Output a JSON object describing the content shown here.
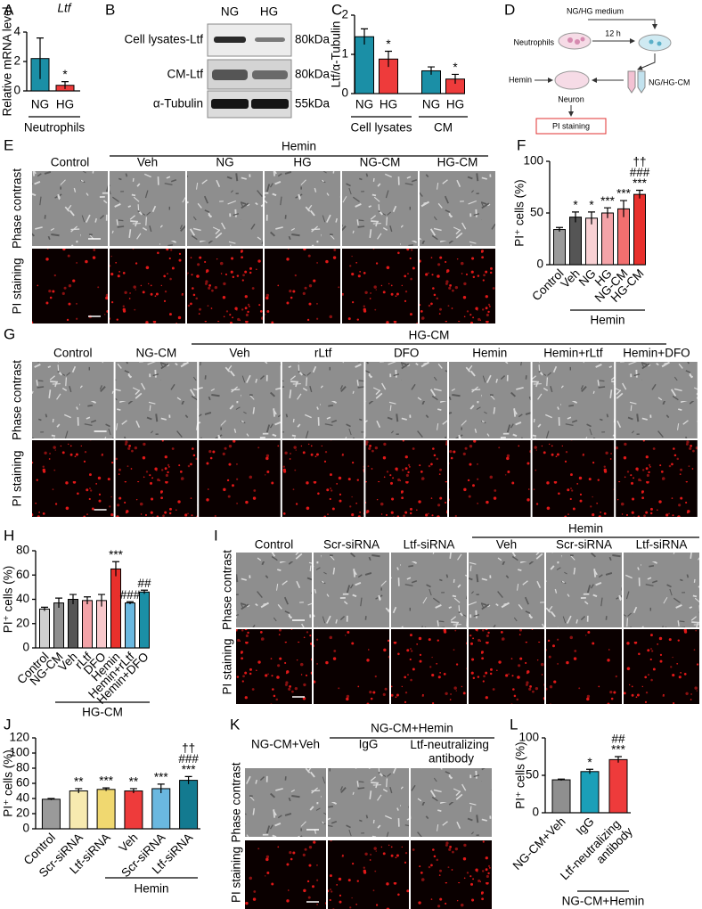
{
  "letters": [
    "A",
    "B",
    "C",
    "D",
    "E",
    "F",
    "G",
    "H",
    "I",
    "J",
    "K",
    "L"
  ],
  "blot": {
    "lanes": [
      "NG",
      "HG"
    ],
    "rows": [
      {
        "label": "Cell lysates-Ltf",
        "size": "80kDa"
      },
      {
        "label": "CM-Ltf",
        "size": "80kDa"
      },
      {
        "label": "α-Tubulin",
        "size": "55kDa"
      }
    ]
  },
  "scheme": {
    "medium": "NG/HG medium",
    "cells": "Neutrophils",
    "time": "12 h",
    "treatment": "Hemin",
    "conditioned": "NG/HG-CM",
    "target": "Neuron",
    "assay": "PI staining"
  },
  "micrographs": [
    {
      "treatment": "Hemin",
      "columns": [
        "Control",
        "Veh",
        "NG",
        "HG",
        "NG-CM",
        "HG-CM"
      ],
      "rows": [
        "Phase contrast",
        "PI staining"
      ]
    },
    {
      "treatment": "HG-CM",
      "columns": [
        "Control",
        "NG-CM",
        "Veh",
        "rLtf",
        "DFO",
        "Hemin",
        "Hemin+rLtf",
        "Hemin+DFO"
      ],
      "rows": [
        "Phase contrast",
        "PI staining"
      ]
    },
    {
      "treatment": "Hemin",
      "columns": [
        "Control",
        "Scr-siRNA",
        "Ltf-siRNA",
        "Veh",
        "Scr-siRNA",
        "Ltf-siRNA"
      ],
      "rows": [
        "Phase contrast",
        "PI staining"
      ]
    },
    {
      "treatment": "NG-CM+Hemin",
      "columns": [
        "NG-CM+Veh",
        "IgG",
        "Ltf-neutralizing antibody"
      ],
      "rows": [
        "Phase contrast",
        "PI staining"
      ]
    }
  ],
  "chart_data": [
    {
      "type": "bar",
      "title": "Ltf",
      "y_label": "Relative mRNA level",
      "categories": [
        "NG",
        "HG"
      ],
      "group_labels": [
        "Neutrophils"
      ],
      "values": [
        2.2,
        0.38
      ],
      "errors": [
        1.4,
        0.25
      ],
      "colors": [
        "#1b8fa6",
        "#ee3b3b"
      ],
      "annotations": [
        {
          "texts": [
            null,
            "*"
          ],
          "color": "#000000"
        }
      ],
      "ylim": [
        0,
        4
      ],
      "yticks": [
        0,
        2,
        4
      ]
    },
    {
      "type": "bar",
      "y_label": "Ltf/α-Tubulin",
      "categories": [
        "NG",
        "HG",
        "NG",
        "HG"
      ],
      "group_labels": [
        "Cell lysates",
        "CM"
      ],
      "values": [
        1.45,
        0.88,
        0.58,
        0.37
      ],
      "errors": [
        0.2,
        0.2,
        0.1,
        0.12
      ],
      "colors": [
        "#1b8fa6",
        "#ee3b3b",
        "#1b8fa6",
        "#ee3b3b"
      ],
      "annotations": [
        {
          "texts": [
            null,
            "*",
            null,
            "*"
          ],
          "color": "#000000"
        }
      ],
      "ylim": [
        0,
        2
      ],
      "yticks": [
        0,
        1,
        2
      ]
    },
    {
      "type": "bar",
      "y_label": "PI⁺ cells (%)",
      "categories": [
        "Control",
        "Veh",
        "NG",
        "HG",
        "NG-CM",
        "HG-CM"
      ],
      "group_labels": [
        "Hemin"
      ],
      "values": [
        34,
        46,
        45,
        50,
        54,
        68
      ],
      "errors": [
        2,
        5,
        6,
        5,
        8,
        4
      ],
      "colors": [
        "#9a9a9a",
        "#555555",
        "#f8d0d3",
        "#f4a3a8",
        "#f26f6f",
        "#e8302c"
      ],
      "annotations": [
        {
          "texts": [
            null,
            "*",
            "*",
            "***",
            "***",
            "***"
          ],
          "color": "#000000"
        },
        {
          "texts": [
            null,
            null,
            null,
            null,
            null,
            "###"
          ],
          "color": "#e8302c"
        },
        {
          "texts": [
            null,
            null,
            null,
            null,
            null,
            "††"
          ],
          "color": "#000000"
        }
      ],
      "ylim": [
        0,
        100
      ],
      "yticks": [
        0,
        50,
        100
      ]
    },
    {
      "type": "bar",
      "y_label": "PI⁺ cells (%)",
      "categories": [
        "Control",
        "NG-CM",
        "Veh",
        "rLtf",
        "DFO",
        "Hemin",
        "Hemin+rLtf",
        "Hemin+DFO"
      ],
      "group_labels": [
        "HG-CM"
      ],
      "values": [
        32,
        37,
        40,
        39,
        39,
        65,
        37,
        46
      ],
      "errors": [
        1.5,
        4,
        4,
        3,
        5,
        6,
        1,
        1.5
      ],
      "colors": [
        "#cfcfcf",
        "#8f8f8f",
        "#555555",
        "#f4a3a8",
        "#f8c8cb",
        "#e8302c",
        "#6ab8e0",
        "#1b8fa6"
      ],
      "annotations": [
        {
          "texts": [
            null,
            null,
            null,
            null,
            null,
            "***",
            "###",
            "##"
          ],
          "color": "#000000"
        }
      ],
      "ylim": [
        0,
        80
      ],
      "yticks": [
        0,
        20,
        40,
        60,
        80
      ]
    },
    {
      "type": "bar",
      "y_label": "PI⁺ cells (%)",
      "categories": [
        "Control",
        "Scr-siRNA",
        "Ltf-siRNA",
        "Veh",
        "Scr-siRNA",
        "Ltf-siRNA"
      ],
      "group_labels": [
        "Hemin"
      ],
      "values": [
        39,
        50,
        52,
        50,
        53,
        64
      ],
      "errors": [
        1,
        3,
        2,
        3,
        6,
        5
      ],
      "colors": [
        "#9a9a9a",
        "#f7eab0",
        "#f0d870",
        "#ee3b3b",
        "#6ab8e0",
        "#137a90"
      ],
      "annotations": [
        {
          "texts": [
            null,
            "**",
            "***",
            "**",
            "***",
            "***"
          ],
          "color": "#000000"
        },
        {
          "texts": [
            null,
            null,
            null,
            null,
            null,
            "###"
          ],
          "color": "#e8302c"
        },
        {
          "texts": [
            null,
            null,
            null,
            null,
            null,
            "††"
          ],
          "color": "#000000"
        }
      ],
      "ylim": [
        0,
        120
      ],
      "yticks": [
        0,
        20,
        40,
        60,
        80,
        100,
        120
      ]
    },
    {
      "type": "bar",
      "y_label": "PI⁺ cells (%)",
      "categories": [
        "NG-CM+Veh",
        "IgG",
        "Ltf-neutralizing antibody"
      ],
      "group_labels": [
        "NG-CM+Hemin"
      ],
      "values": [
        44,
        55,
        71
      ],
      "errors": [
        1,
        3,
        4
      ],
      "colors": [
        "#8f8f8f",
        "#1b9fb8",
        "#ee3b3b"
      ],
      "annotations": [
        {
          "texts": [
            null,
            "*",
            "***"
          ],
          "color": "#000000"
        },
        {
          "texts": [
            null,
            null,
            "##"
          ],
          "color": "#e8302c"
        }
      ],
      "ylim": [
        0,
        100
      ],
      "yticks": [
        0,
        50,
        100
      ]
    }
  ]
}
